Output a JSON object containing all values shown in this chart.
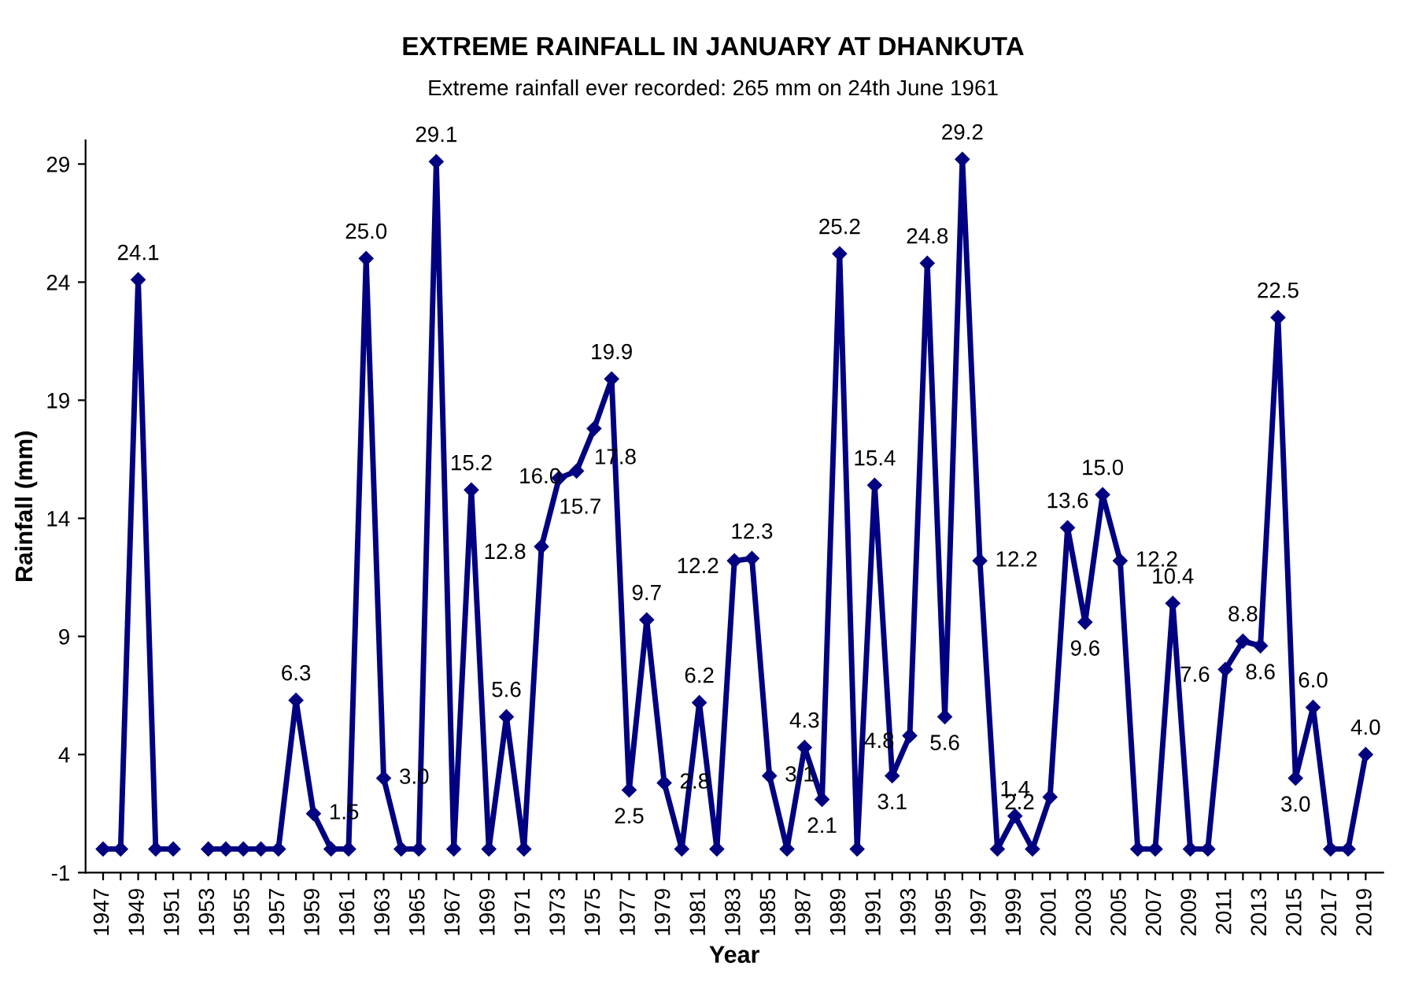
{
  "chart_data": {
    "type": "line",
    "title": "EXTREME RAINFALL IN JANUARY AT DHANKUTA",
    "subtitle": "Extreme rainfall ever recorded: 265 mm on 24th June 1961",
    "xlabel": "Year",
    "ylabel": "Rainfall (mm)",
    "categories": [
      "1947",
      null,
      "1949",
      null,
      "1951",
      null,
      "1953",
      null,
      "1955",
      null,
      "1957",
      null,
      "1959",
      null,
      "1961",
      null,
      "1963",
      null,
      "1965",
      null,
      "1967",
      null,
      "1969",
      null,
      "1971",
      null,
      "1973",
      null,
      "1975",
      null,
      "1977",
      null,
      "1979",
      null,
      "1981",
      null,
      "1983",
      null,
      "1985",
      null,
      "1987",
      null,
      "1989",
      null,
      "1991",
      null,
      "1993",
      null,
      "1995",
      null,
      "1997",
      null,
      "1999",
      null,
      "2001",
      null,
      "2003",
      null,
      "2005",
      null,
      "2007",
      null,
      "2009",
      null,
      "2011",
      null,
      "2013",
      null,
      "2015",
      null,
      "2017",
      null,
      "2019"
    ],
    "series": [
      {
        "color": "#000080",
        "values": [
          0,
          0,
          24.1,
          0,
          0,
          null,
          0,
          0,
          0,
          0,
          0,
          6.3,
          1.5,
          0,
          0,
          25.0,
          3.0,
          0,
          0,
          29.1,
          0,
          15.2,
          0,
          5.6,
          0,
          12.8,
          15.7,
          16.0,
          17.8,
          19.9,
          2.5,
          9.7,
          2.8,
          0,
          6.2,
          0,
          12.2,
          12.3,
          3.1,
          0,
          4.3,
          2.1,
          25.2,
          0,
          15.4,
          3.1,
          4.8,
          24.8,
          5.6,
          29.2,
          12.2,
          0,
          1.4,
          0,
          2.2,
          13.6,
          9.6,
          15.0,
          12.2,
          0,
          0,
          10.4,
          0,
          0,
          7.6,
          8.8,
          8.6,
          22.5,
          3.0,
          6.0,
          0,
          0,
          4.0
        ],
        "value_labels": [
          null,
          null,
          "24.1",
          null,
          null,
          null,
          null,
          null,
          null,
          null,
          null,
          "6.3",
          "1.5",
          null,
          null,
          "25.0",
          "3.0",
          null,
          null,
          "29.1",
          null,
          "15.2",
          null,
          "5.6",
          null,
          "12.8",
          "15.7",
          "16.0",
          "17.8",
          "19.9",
          "2.5",
          "9.7",
          "2.8",
          null,
          "6.2",
          null,
          "12.2",
          "12.3",
          "3.1",
          null,
          "4.3",
          "2.1",
          "25.2",
          null,
          "15.4",
          "3.1",
          "4.8",
          "24.8",
          "5.6",
          "29.2",
          "12.2",
          null,
          "1.4",
          null,
          "2.2",
          "13.6",
          "9.6",
          "15.0",
          "12.2",
          null,
          null,
          "10.4",
          null,
          null,
          "7.6",
          "8.8",
          "8.6",
          "22.5",
          "3.0",
          "6.0",
          null,
          null,
          "4.0"
        ]
      }
    ],
    "ylim": [
      -1,
      30
    ],
    "yticks": [
      -1,
      4,
      9,
      14,
      19,
      24,
      29
    ],
    "grid": false,
    "legend": false,
    "marker": "diamond",
    "line_style": "solid"
  }
}
